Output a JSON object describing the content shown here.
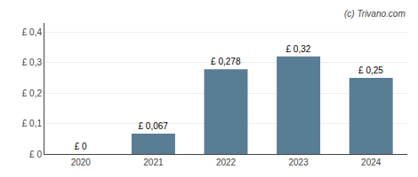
{
  "chart_data": {
    "type": "bar",
    "categories": [
      "2020",
      "2021",
      "2022",
      "2023",
      "2024"
    ],
    "values": [
      0.0,
      0.067,
      0.278,
      0.32,
      0.25
    ],
    "value_labels": [
      "£ 0",
      "£ 0,067",
      "£ 0,278",
      "£ 0,32",
      "£ 0,25"
    ],
    "data_labels": true,
    "color": "#5a7d96",
    "ylim": [
      0,
      0.43
    ],
    "yticks": [
      {
        "value": 0.0,
        "label": "£ 0"
      },
      {
        "value": 0.1,
        "label": "£ 0,1"
      },
      {
        "value": 0.2,
        "label": "£ 0,2"
      },
      {
        "value": 0.3,
        "label": "£ 0,3"
      },
      {
        "value": 0.4,
        "label": "£ 0,4"
      }
    ],
    "grid": true,
    "annotations": [
      "(c) Trivano.com"
    ]
  }
}
